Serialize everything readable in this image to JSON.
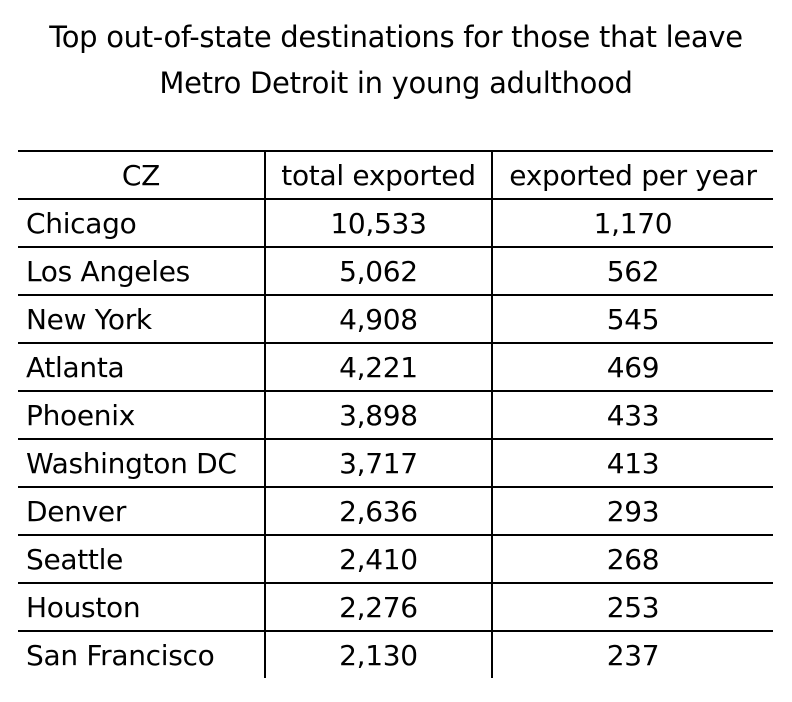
{
  "title": {
    "line1": "Top out-of-state destinations for those that leave",
    "line2": "Metro Detroit in young adulthood"
  },
  "chart_data": {
    "type": "table",
    "title": "Top out-of-state destinations for those that leave Metro Detroit in young adulthood",
    "columns": [
      "CZ",
      "total exported",
      "exported per year"
    ],
    "rows": [
      [
        "Chicago",
        "10,533",
        "1,170"
      ],
      [
        "Los Angeles",
        "5,062",
        "562"
      ],
      [
        "New York",
        "4,908",
        "545"
      ],
      [
        "Atlanta",
        "4,221",
        "469"
      ],
      [
        "Phoenix",
        "3,898",
        "433"
      ],
      [
        "Washington DC",
        "3,717",
        "413"
      ],
      [
        "Denver",
        "2,636",
        "293"
      ],
      [
        "Seattle",
        "2,410",
        "268"
      ],
      [
        "Houston",
        "2,276",
        "253"
      ],
      [
        "San Francisco",
        "2,130",
        "237"
      ]
    ]
  }
}
